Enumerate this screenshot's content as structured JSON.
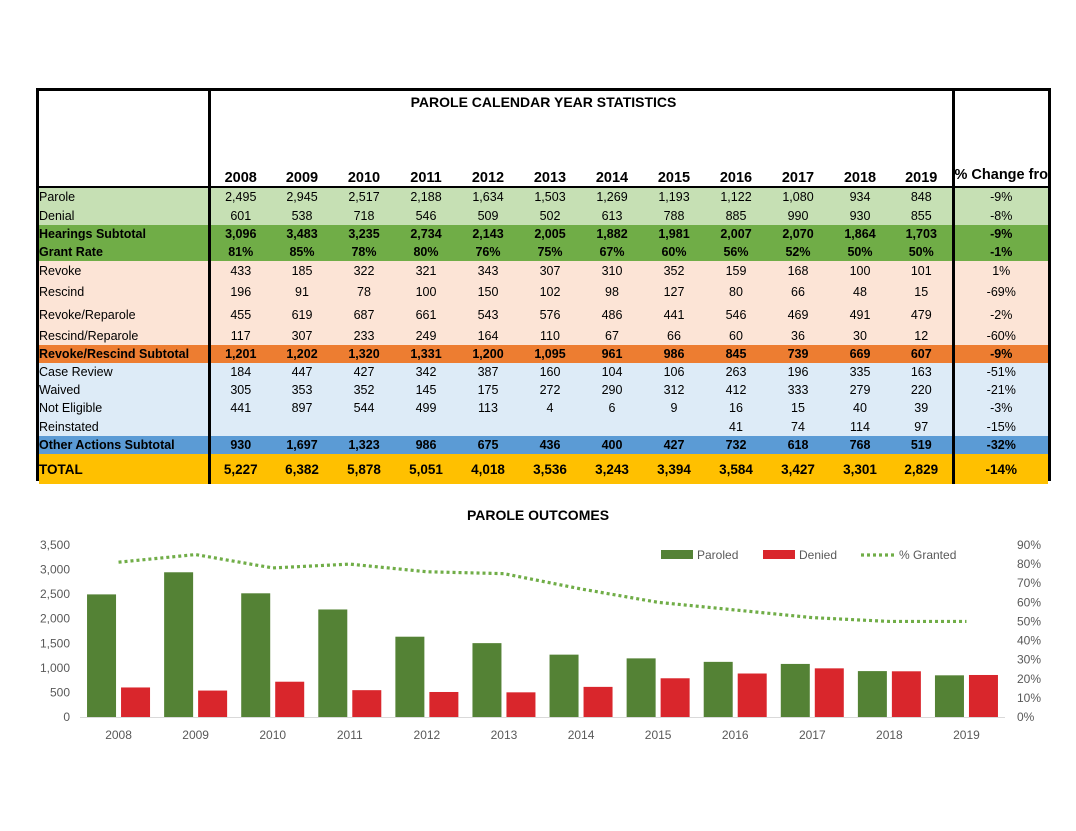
{
  "table": {
    "title": "PAROLE CALENDAR YEAR STATISTICS",
    "years": [
      "2008",
      "2009",
      "2010",
      "2011",
      "2012",
      "2013",
      "2014",
      "2015",
      "2016",
      "2017",
      "2018",
      "2019"
    ],
    "pct_header": "% Change from prior year",
    "rows": [
      {
        "label": "Parole",
        "values": [
          "2,495",
          "2,945",
          "2,517",
          "2,188",
          "1,634",
          "1,503",
          "1,269",
          "1,193",
          "1,122",
          "1,080",
          "934",
          "848"
        ],
        "change": "-9%",
        "bg": "#c6e0b4",
        "bold": false,
        "h": 19
      },
      {
        "label": "Denial",
        "values": [
          "601",
          "538",
          "718",
          "546",
          "509",
          "502",
          "613",
          "788",
          "885",
          "990",
          "930",
          "855"
        ],
        "change": "-8%",
        "bg": "#c6e0b4",
        "bold": false,
        "h": 19
      },
      {
        "label": "Hearings Subtotal",
        "values": [
          "3,096",
          "3,483",
          "3,235",
          "2,734",
          "2,143",
          "2,005",
          "1,882",
          "1,981",
          "2,007",
          "2,070",
          "1,864",
          "1,703"
        ],
        "change": "-9%",
        "bg": "#70ad47",
        "bold": true,
        "h": 18
      },
      {
        "label": "Grant Rate",
        "values": [
          "81%",
          "85%",
          "78%",
          "80%",
          "76%",
          "75%",
          "67%",
          "60%",
          "56%",
          "52%",
          "50%",
          "50%"
        ],
        "change": "-1%",
        "bg": "#70ad47",
        "bold": true,
        "h": 18
      },
      {
        "label": "Revoke",
        "values": [
          "433",
          "185",
          "322",
          "321",
          "343",
          "307",
          "310",
          "352",
          "159",
          "168",
          "100",
          "101"
        ],
        "change": "1%",
        "bg": "#fce4d6",
        "bold": false,
        "h": 20
      },
      {
        "label": "Rescind",
        "values": [
          "196",
          "91",
          "78",
          "100",
          "150",
          "102",
          "98",
          "127",
          "80",
          "66",
          "48",
          "15"
        ],
        "change": "-69%",
        "bg": "#fce4d6",
        "bold": false,
        "h": 22
      },
      {
        "label": "Revoke/Reparole",
        "values": [
          "455",
          "619",
          "687",
          "661",
          "543",
          "576",
          "486",
          "441",
          "546",
          "469",
          "491",
          "479"
        ],
        "change": "-2%",
        "bg": "#fce4d6",
        "bold": false,
        "h": 23
      },
      {
        "label": "Rescind/Reparole",
        "values": [
          "117",
          "307",
          "233",
          "249",
          "164",
          "110",
          "67",
          "66",
          "60",
          "36",
          "30",
          "12"
        ],
        "change": "-60%",
        "bg": "#fce4d6",
        "bold": false,
        "h": 19
      },
      {
        "label": "Revoke/Rescind Subtotal",
        "values": [
          "1,201",
          "1,202",
          "1,320",
          "1,331",
          "1,200",
          "1,095",
          "961",
          "986",
          "845",
          "739",
          "669",
          "607"
        ],
        "change": "-9%",
        "bg": "#ed7d31",
        "bold": true,
        "h": 18
      },
      {
        "label": "Case Review",
        "values": [
          "184",
          "447",
          "427",
          "342",
          "387",
          "160",
          "104",
          "106",
          "263",
          "196",
          "335",
          "163"
        ],
        "change": "-51%",
        "bg": "#ddebf7",
        "bold": false,
        "h": 18
      },
      {
        "label": "Waived",
        "values": [
          "305",
          "353",
          "352",
          "145",
          "175",
          "272",
          "290",
          "312",
          "412",
          "333",
          "279",
          "220"
        ],
        "change": "-21%",
        "bg": "#ddebf7",
        "bold": false,
        "h": 18
      },
      {
        "label": "Not Eligible",
        "values": [
          "441",
          "897",
          "544",
          "499",
          "113",
          "4",
          "6",
          "9",
          "16",
          "15",
          "40",
          "39"
        ],
        "change": "-3%",
        "bg": "#ddebf7",
        "bold": false,
        "h": 18
      },
      {
        "label": "Reinstated",
        "values": [
          "",
          "",
          "",
          "",
          "",
          "",
          "",
          "",
          "41",
          "74",
          "114",
          "97"
        ],
        "change": "-15%",
        "bg": "#ddebf7",
        "bold": false,
        "h": 19
      },
      {
        "label": "Other Actions Subtotal",
        "values": [
          "930",
          "1,697",
          "1,323",
          "986",
          "675",
          "436",
          "400",
          "427",
          "732",
          "618",
          "768",
          "519"
        ],
        "change": "-32%",
        "bg": "#5b9bd5",
        "bold": true,
        "h": 18
      },
      {
        "label": "TOTAL",
        "values": [
          "5,227",
          "6,382",
          "5,878",
          "5,051",
          "4,018",
          "3,536",
          "3,243",
          "3,394",
          "3,584",
          "3,427",
          "3,301",
          "2,829"
        ],
        "change": "-14%",
        "bg": "#ffc000",
        "bold": true,
        "h": 30
      }
    ]
  },
  "chart_data": {
    "type": "bar",
    "title": "PAROLE OUTCOMES",
    "categories": [
      "2008",
      "2009",
      "2010",
      "2011",
      "2012",
      "2013",
      "2014",
      "2015",
      "2016",
      "2017",
      "2018",
      "2019"
    ],
    "series": [
      {
        "name": "Paroled",
        "type": "bar",
        "axis": "left",
        "color": "#548235",
        "values": [
          2495,
          2945,
          2517,
          2188,
          1634,
          1503,
          1269,
          1193,
          1122,
          1080,
          934,
          848
        ]
      },
      {
        "name": "Denied",
        "type": "bar",
        "axis": "left",
        "color": "#d9262c",
        "values": [
          601,
          538,
          718,
          546,
          509,
          502,
          613,
          788,
          885,
          990,
          930,
          855
        ]
      },
      {
        "name": "% Granted",
        "type": "line",
        "axis": "right",
        "style": "dotted",
        "color": "#70ad47",
        "values": [
          81,
          85,
          78,
          80,
          76,
          75,
          67,
          60,
          56,
          52,
          50,
          50
        ]
      }
    ],
    "ylim": [
      0,
      3500
    ],
    "yticks": [
      "0",
      "500",
      "1,000",
      "1,500",
      "2,000",
      "2,500",
      "3,000",
      "3,500"
    ],
    "y2lim": [
      0,
      90
    ],
    "y2ticks": [
      "0%",
      "10%",
      "20%",
      "30%",
      "40%",
      "50%",
      "60%",
      "70%",
      "80%",
      "90%"
    ],
    "legend": "top-right",
    "grid": false
  }
}
